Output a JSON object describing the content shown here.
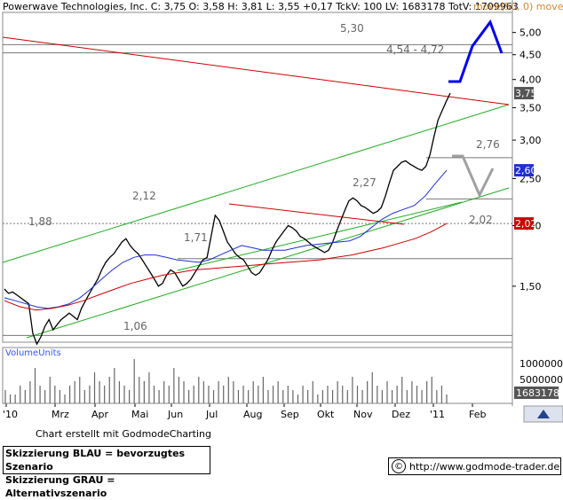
{
  "header": {
    "company": "Powerwave Technologies, Inc.",
    "quote": "C: 3,75 O: 3,58 H: 3,81 L: 3,55 +0,17 TckV: 100 LV: 1683178 TotV: 1709963",
    "sma_label": "move(50, 0) move(200"
  },
  "volume_label": "VolumeUnits",
  "credit": "Chart erstellt mit GodmodeCharting",
  "legend": {
    "blue": "Skizzierung BLAU = bevorzugtes Szenario",
    "gray": "Skizzierung GRAU = Alternativszenario"
  },
  "url": "http://www.godmode-trader.de",
  "colors": {
    "price": "#000000",
    "sma50": "#1f2fd0",
    "sma200": "#cc0000",
    "channel": "#22aa22",
    "resistance": "#cc0000",
    "scenario_blue": "#0000ee",
    "scenario_gray": "#a0a0a0"
  },
  "chart_data": {
    "type": "line",
    "scale": "log",
    "ylim": [
      1.15,
      5.5
    ],
    "y_ticks": [
      "5,00",
      "4,50",
      "4,00",
      "3,50",
      "3,00",
      "2,50",
      "2,00",
      "1,50"
    ],
    "x_ticks": [
      "'10",
      "Mrz",
      "Apr",
      "Mai",
      "Jun",
      "Jul",
      "Aug",
      "Sep",
      "Okt",
      "Nov",
      "Dez",
      "'11",
      "Feb"
    ],
    "price_badges": [
      {
        "label": "3,75",
        "value": 3.75,
        "color": "#555555"
      },
      {
        "label": "2,60",
        "value": 2.6,
        "color": "#1f2fd0"
      },
      {
        "label": "2,02",
        "value": 2.02,
        "color": "#cc0000"
      }
    ],
    "annotations": [
      "5,30",
      "4,54 - 4,72",
      "2,76",
      "2,27",
      "2,12",
      "1,88",
      "1,71",
      "1,06",
      "2,02"
    ],
    "series": [
      {
        "name": "price",
        "values": [
          1.48,
          1.45,
          1.46,
          1.44,
          1.42,
          1.4,
          1.38,
          1.2,
          1.14,
          1.18,
          1.24,
          1.28,
          1.22,
          1.25,
          1.28,
          1.3,
          1.32,
          1.3,
          1.28,
          1.35,
          1.4,
          1.45,
          1.5,
          1.55,
          1.62,
          1.68,
          1.72,
          1.75,
          1.8,
          1.85,
          1.88,
          1.82,
          1.78,
          1.75,
          1.7,
          1.65,
          1.6,
          1.55,
          1.5,
          1.52,
          1.58,
          1.62,
          1.6,
          1.55,
          1.5,
          1.52,
          1.55,
          1.6,
          1.65,
          1.7,
          1.72,
          1.9,
          2.1,
          2.05,
          1.95,
          1.85,
          1.8,
          1.75,
          1.72,
          1.7,
          1.65,
          1.6,
          1.58,
          1.6,
          1.65,
          1.7,
          1.78,
          1.85,
          1.9,
          1.95,
          2.0,
          1.98,
          1.95,
          1.9,
          1.88,
          1.85,
          1.82,
          1.8,
          1.78,
          1.76,
          1.78,
          1.85,
          1.95,
          2.05,
          2.15,
          2.25,
          2.28,
          2.25,
          2.2,
          2.18,
          2.15,
          2.12,
          2.14,
          2.18,
          2.3,
          2.45,
          2.6,
          2.65,
          2.7,
          2.72,
          2.68,
          2.65,
          2.62,
          2.6,
          2.65,
          2.8,
          3.05,
          3.3,
          3.45,
          3.6,
          3.75
        ]
      },
      {
        "name": "sma50",
        "values": [
          1.42,
          1.4,
          1.38,
          1.36,
          1.35,
          1.36,
          1.38,
          1.42,
          1.48,
          1.55,
          1.62,
          1.68,
          1.72,
          1.74,
          1.74,
          1.72,
          1.7,
          1.69,
          1.68,
          1.7,
          1.74,
          1.78,
          1.82,
          1.8,
          1.78,
          1.78,
          1.78,
          1.8,
          1.82,
          1.83,
          1.84,
          1.85,
          1.86,
          1.9,
          1.98,
          2.06,
          2.12,
          2.16,
          2.2,
          2.3,
          2.45,
          2.6
        ]
      },
      {
        "name": "sma200",
        "values": [
          1.4,
          1.36,
          1.34,
          1.35,
          1.37,
          1.4,
          1.44,
          1.48,
          1.52,
          1.55,
          1.58,
          1.6,
          1.62,
          1.63,
          1.64,
          1.65,
          1.66,
          1.67,
          1.68,
          1.69,
          1.7,
          1.72,
          1.74,
          1.77,
          1.8,
          1.84,
          1.88,
          1.94,
          2.02
        ]
      }
    ],
    "volume_ticks": [
      "10000000",
      "5000000"
    ],
    "last_volume": "1683178",
    "volume": [
      3,
      2,
      2,
      4,
      3,
      5,
      8,
      4,
      3,
      6,
      4,
      3,
      2,
      4,
      5,
      6,
      3,
      4,
      7,
      5,
      4,
      6,
      8,
      5,
      4,
      3,
      10,
      6,
      5,
      7,
      4,
      3,
      5,
      4,
      8,
      6,
      5,
      3,
      4,
      6,
      5,
      4,
      3,
      5,
      4,
      6,
      5,
      3,
      4,
      3,
      5,
      4,
      6,
      3,
      4,
      5,
      3,
      4,
      3,
      2,
      4,
      3,
      5,
      2,
      3,
      4,
      3,
      5,
      4,
      3,
      6,
      4,
      3,
      5,
      7,
      4,
      3,
      5,
      3,
      4,
      6,
      3,
      5,
      4,
      3,
      5,
      6,
      3,
      4,
      2
    ]
  }
}
